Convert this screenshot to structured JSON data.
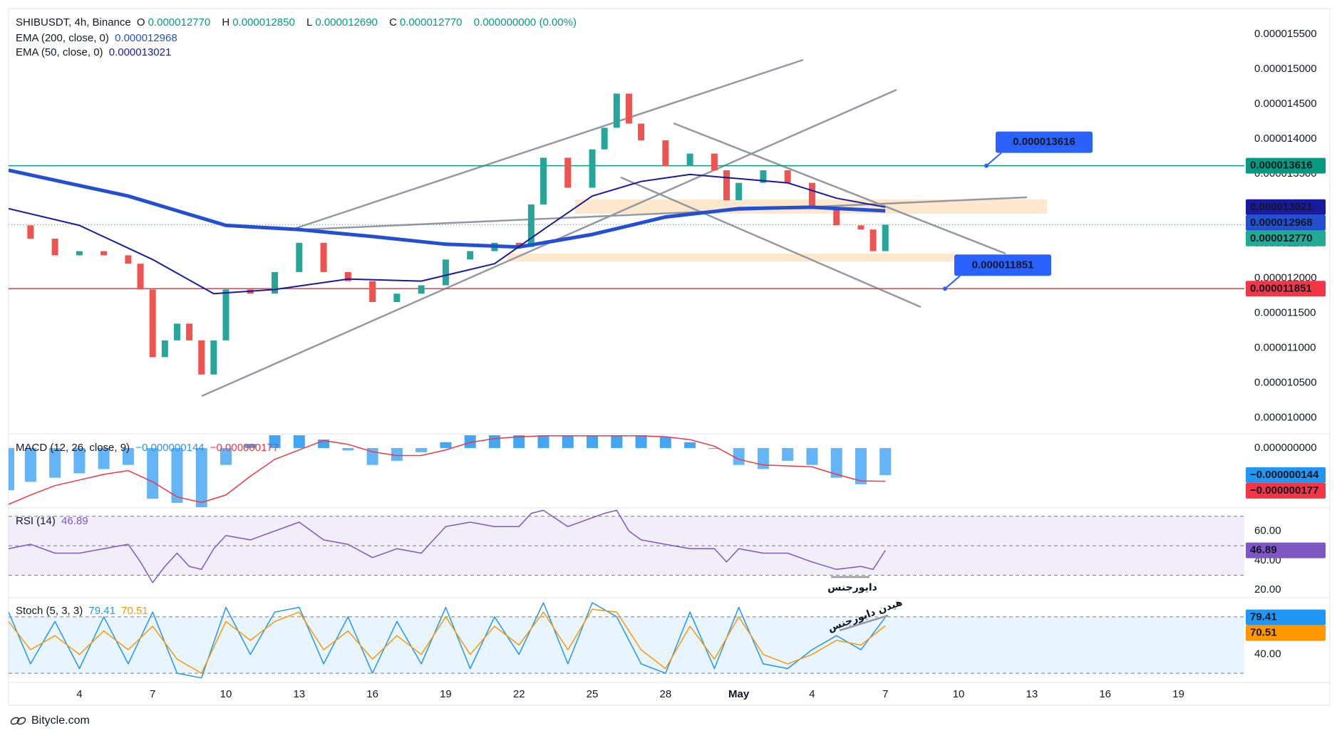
{
  "chart_data": [
    {
      "type": "candlestick",
      "title": "SHIBUSDT, 4h, Binance",
      "ohlc": [
        {
          "key": "O",
          "value": 1.277e-05,
          "label": "0.000012770"
        },
        {
          "key": "H",
          "value": 1.285e-05,
          "label": "0.000012850"
        },
        {
          "key": "L",
          "value": 1.269e-05,
          "label": "0.000012690"
        },
        {
          "key": "C",
          "value": 1.277e-05,
          "label": "0.000012770"
        }
      ],
      "change": "0.000000000 (0.00%)",
      "up_color": "#26a69a",
      "down_color": "#ef5350",
      "close_color": "#22ab94",
      "xlim": [
        1.1,
        51.7
      ],
      "xticks": [
        4,
        7,
        10,
        13,
        16,
        19,
        22,
        25,
        28,
        {
          "value": 31,
          "label": "May"
        },
        {
          "value": 34,
          "label": "4"
        },
        {
          "value": 37,
          "label": "7"
        },
        {
          "value": 40,
          "label": "10"
        },
        {
          "value": 43,
          "label": "13"
        },
        {
          "value": 46,
          "label": "16"
        },
        {
          "value": 49,
          "label": "19"
        }
      ],
      "ylim": [
        9.79e-06,
        1.587e-05
      ],
      "yticks": [
        {
          "value": 1.55e-05,
          "label": "0.000015500"
        },
        {
          "value": 1.5e-05,
          "label": "0.000015000"
        },
        {
          "value": 1.45e-05,
          "label": "0.000014500"
        },
        {
          "value": 1.4e-05,
          "label": "0.000014000"
        },
        {
          "value": 1.35e-05,
          "label": "0.000013500"
        },
        {
          "value": 1.3e-05,
          "label": "0.000013000"
        },
        {
          "value": 1.25e-05,
          "label": "0.000012500"
        },
        {
          "value": 1.2e-05,
          "label": "0.000012000"
        },
        {
          "value": 1.15e-05,
          "label": "0.000011500"
        },
        {
          "value": 1.1e-05,
          "label": "0.000011000"
        },
        {
          "value": 1.05e-05,
          "label": "0.000010500"
        },
        {
          "value": 1e-05,
          "label": "0.000010000"
        }
      ],
      "candles": {
        "x": [
          1.1,
          2,
          3,
          4,
          5,
          6,
          6.5,
          7,
          7.5,
          8,
          8.5,
          9,
          9.5,
          10,
          11,
          12,
          13,
          14,
          15,
          16,
          17,
          18,
          19,
          20,
          21,
          22,
          22.5,
          23,
          24,
          25,
          25.5,
          26,
          26.5,
          27,
          28,
          29,
          30,
          30.5,
          31,
          32,
          33,
          34,
          35,
          36,
          36.5,
          37
        ],
        "values": [
          1.276e-05,
          1.257e-05,
          1.233e-05,
          1.239e-05,
          1.233e-05,
          1.221e-05,
          1.184e-05,
          1.087e-05,
          1.111e-05,
          1.135e-05,
          1.111e-05,
          1.062e-05,
          1.111e-05,
          1.184e-05,
          1.178e-05,
          1.209e-05,
          1.251e-05,
          1.209e-05,
          1.196e-05,
          1.166e-05,
          1.178e-05,
          1.19e-05,
          1.227e-05,
          1.239e-05,
          1.251e-05,
          1.245e-05,
          1.306e-05,
          1.373e-05,
          1.33e-05,
          1.385e-05,
          1.416e-05,
          1.465e-05,
          1.422e-05,
          1.398e-05,
          1.361e-05,
          1.379e-05,
          1.355e-05,
          1.312e-05,
          1.337e-05,
          1.355e-05,
          1.337e-05,
          1.3e-05,
          1.276e-05,
          1.27e-05,
          1.239e-05,
          1.277e-05
        ]
      },
      "series": [
        {
          "name": "EMA (200, close, 0)",
          "color": "#2350d2",
          "last": {
            "value": 1.2968e-05,
            "label": "0.000012968"
          },
          "x": [
            1.1,
            6,
            10,
            13,
            16,
            19,
            22,
            25,
            28,
            31,
            34,
            37
          ],
          "values": [
            1.355e-05,
            1.318e-05,
            1.276e-05,
            1.27e-05,
            1.26e-05,
            1.249e-05,
            1.245e-05,
            1.263e-05,
            1.288e-05,
            1.3e-05,
            1.302e-05,
            1.2968e-05
          ]
        },
        {
          "name": "EMA (50, close, 0)",
          "color": "#1a1a9e",
          "last": {
            "value": 1.3021e-05,
            "label": "0.000013021"
          },
          "x": [
            1.1,
            4,
            7,
            9.5,
            12,
            15,
            18,
            21,
            23,
            25,
            27,
            29,
            31,
            33,
            35,
            37
          ],
          "values": [
            1.3e-05,
            1.276e-05,
            1.227e-05,
            1.178e-05,
            1.184e-05,
            1.199e-05,
            1.196e-05,
            1.221e-05,
            1.27e-05,
            1.318e-05,
            1.339e-05,
            1.349e-05,
            1.343e-05,
            1.337e-05,
            1.315e-05,
            1.3021e-05
          ]
        }
      ],
      "hlines": [
        {
          "value": 1.3616e-05,
          "label": "0.000013616",
          "color": "#089981"
        },
        {
          "value": 1.1851e-05,
          "label": "0.000011851",
          "color": "#f23645"
        }
      ]
    },
    {
      "type": "macd",
      "title": "MACD (12, 26, close, 9)",
      "ylim": [
        -3.15e-07,
        6.8e-08
      ],
      "yticks": [
        {
          "value": 0,
          "label": "0.000000000"
        }
      ],
      "series": [
        {
          "color": "#2196f3",
          "last": {
            "value": -1.44e-07,
            "label": "−0.000000144"
          },
          "x": [
            1.1,
            2,
            3,
            4,
            5,
            6,
            7,
            8,
            9,
            10,
            11,
            12,
            13,
            14,
            15,
            16,
            17,
            18,
            19,
            20,
            21,
            22,
            23,
            24,
            25,
            26,
            27,
            28,
            29,
            30,
            31,
            32,
            33,
            34,
            35,
            36,
            37
          ],
          "values": [
            -2.25e-07,
            -1.8e-07,
            -1.58e-07,
            -1.35e-07,
            -1.12e-07,
            -9e-08,
            -2.7e-07,
            -2.92e-07,
            -3.15e-07,
            -9e-08,
            2.2e-08,
            6.8e-08,
            6.8e-08,
            4.5e-08,
            -1.3e-08,
            -9e-08,
            -6.8e-08,
            -2.2e-08,
            3.1e-08,
            6.8e-08,
            6.8e-08,
            6.8e-08,
            6.8e-08,
            6.8e-08,
            6.8e-08,
            6.8e-08,
            6.8e-08,
            5.8e-08,
            3.1e-08,
            0,
            -9e-08,
            -1.12e-07,
            -6.8e-08,
            -9e-08,
            -1.58e-07,
            -1.93e-07,
            -1.44e-07
          ]
        },
        {
          "color": "#f23645",
          "last": {
            "value": -1.77e-07,
            "label": "−0.000000177"
          },
          "x": [
            1.1,
            2,
            3,
            4,
            5,
            6,
            7,
            8,
            9,
            10,
            11,
            12,
            13,
            14,
            15,
            16,
            17,
            18,
            19,
            20,
            21,
            22,
            23,
            24,
            25,
            26,
            27,
            28,
            29,
            30,
            31,
            32,
            33,
            34,
            35,
            36,
            37
          ],
          "values": [
            -3e-07,
            -2.5e-07,
            -2e-07,
            -1.7e-07,
            -1.4e-07,
            -1.2e-07,
            -1.8e-07,
            -2.6e-07,
            -2.9e-07,
            -2.5e-07,
            -1.5e-07,
            -6e-08,
            -1e-08,
            4e-08,
            2e-08,
            -2e-08,
            -4e-08,
            -4e-08,
            -1e-08,
            3e-08,
            5e-08,
            6e-08,
            6.5e-08,
            6.5e-08,
            6.5e-08,
            6.5e-08,
            6.5e-08,
            6e-08,
            4.5e-08,
            1e-08,
            -6e-08,
            -9e-08,
            -9.5e-08,
            -1e-07,
            -1.4e-07,
            -1.75e-07,
            -1.77e-07
          ]
        }
      ]
    },
    {
      "type": "line",
      "title": "RSI (14)",
      "ylim": [
        15.3,
        74.7
      ],
      "yticks": [
        {
          "value": 60,
          "label": "60.00"
        },
        {
          "value": 40,
          "label": "40.00"
        },
        {
          "value": 20,
          "label": "20.00"
        }
      ],
      "levels": [
        70,
        50,
        30
      ],
      "band_color": "#7e57c2",
      "annotation": "دایورجنس",
      "series": [
        {
          "color": "#7e57c2",
          "last": {
            "value": 46.89,
            "label": "46.89"
          },
          "x": [
            1.1,
            2,
            3,
            4,
            5,
            6,
            6.5,
            7,
            7.5,
            8,
            8.5,
            9,
            9.5,
            10,
            11,
            12,
            13,
            14,
            15,
            16,
            17,
            18,
            19,
            20,
            21,
            22,
            22.5,
            23,
            24,
            25,
            25.5,
            26,
            26.5,
            27,
            28,
            29,
            30,
            30.5,
            31,
            32,
            33,
            34,
            35,
            36,
            36.5,
            37
          ],
          "values": [
            48,
            51,
            45,
            45,
            48,
            51,
            39,
            25,
            36,
            45,
            36,
            34,
            48,
            57,
            54,
            60,
            66,
            54,
            51,
            42,
            48,
            45,
            63,
            66,
            63,
            63,
            72,
            74,
            63,
            69,
            72,
            74,
            60,
            54,
            51,
            48,
            48,
            39,
            48,
            45,
            45,
            39,
            34,
            36,
            34,
            46.89
          ]
        }
      ]
    },
    {
      "type": "line",
      "title": "Stoch (5, 3, 3)",
      "ylim": [
        11,
        98.8
      ],
      "yticks": [
        {
          "value": 40,
          "label": "40.00"
        }
      ],
      "levels": [
        80,
        20
      ],
      "band_color": "#2196f3",
      "annotation": "هیدن دایورجنس",
      "series": [
        {
          "color": "#2196f3",
          "last": {
            "value": 79.41,
            "label": "79.41"
          },
          "x": [
            1.1,
            2,
            3,
            4,
            5,
            6,
            7,
            8,
            9,
            10,
            11,
            12,
            13,
            14,
            15,
            16,
            17,
            18,
            19,
            20,
            21,
            22,
            23,
            24,
            25,
            26,
            27,
            28,
            29,
            30,
            31,
            32,
            33,
            34,
            35,
            36,
            37
          ],
          "values": [
            85,
            30,
            75,
            25,
            80,
            30,
            85,
            20,
            15,
            90,
            40,
            85,
            90,
            30,
            80,
            20,
            75,
            30,
            90,
            25,
            80,
            40,
            95,
            30,
            95,
            80,
            30,
            20,
            85,
            25,
            90,
            30,
            25,
            45,
            60,
            45,
            79.41
          ]
        },
        {
          "color": "#ff9800",
          "last": {
            "value": 70.51,
            "label": "70.51"
          },
          "x": [
            1.1,
            2,
            3,
            4,
            5,
            6,
            7,
            8,
            9,
            10,
            11,
            12,
            13,
            14,
            15,
            16,
            17,
            18,
            19,
            20,
            21,
            22,
            23,
            24,
            25,
            26,
            27,
            28,
            29,
            30,
            31,
            32,
            33,
            34,
            35,
            36,
            37
          ],
          "values": [
            75,
            45,
            60,
            40,
            65,
            45,
            70,
            35,
            20,
            75,
            55,
            75,
            85,
            45,
            65,
            35,
            60,
            40,
            80,
            40,
            70,
            50,
            85,
            45,
            88,
            85,
            45,
            25,
            70,
            35,
            80,
            40,
            30,
            40,
            55,
            50,
            70.51
          ]
        }
      ]
    }
  ],
  "footer": "Bitycle.com"
}
